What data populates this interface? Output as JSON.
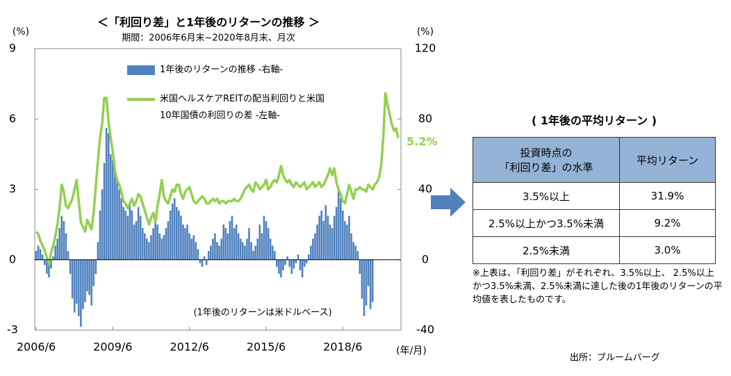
{
  "chart_data": {
    "type": "bar-line",
    "title": "＜「利回り差」と1年後のリターンの推移 ＞",
    "subtitle": "期間：2006年6月末~2020年8月末、月次",
    "y_label": "(%)",
    "y2_label": "(%)",
    "x_label": "(年/月)",
    "annotation": "(1年後のリターンは米ドルベース)",
    "ylim": [
      -3,
      9
    ],
    "yticks": [
      -3,
      0,
      3,
      6,
      9
    ],
    "y2lim": [
      -40,
      120
    ],
    "y2ticks": [
      -40,
      0,
      40,
      80,
      120
    ],
    "grid": false,
    "categories": [
      "2006/6",
      null,
      null,
      null,
      null,
      null,
      null,
      null,
      null,
      null,
      null,
      null,
      null,
      null,
      null,
      null,
      null,
      null,
      null,
      null,
      null,
      null,
      null,
      null,
      null,
      null,
      null,
      null,
      null,
      null,
      null,
      null,
      null,
      null,
      null,
      null,
      "2009/6",
      null,
      null,
      null,
      null,
      null,
      null,
      null,
      null,
      null,
      null,
      null,
      null,
      null,
      null,
      null,
      null,
      null,
      null,
      null,
      null,
      null,
      null,
      null,
      null,
      null,
      null,
      null,
      null,
      null,
      null,
      null,
      null,
      null,
      null,
      null,
      "2012/6",
      null,
      null,
      null,
      null,
      null,
      null,
      null,
      null,
      null,
      null,
      null,
      null,
      null,
      null,
      null,
      null,
      null,
      null,
      null,
      null,
      null,
      null,
      null,
      null,
      null,
      null,
      null,
      null,
      null,
      null,
      null,
      null,
      null,
      null,
      null,
      "2015/6",
      null,
      null,
      null,
      null,
      null,
      null,
      null,
      null,
      null,
      null,
      null,
      null,
      null,
      null,
      null,
      null,
      null,
      null,
      null,
      null,
      null,
      null,
      null,
      null,
      null,
      null,
      null,
      null,
      null,
      null,
      null,
      null,
      null,
      null,
      null,
      "2018/6",
      null,
      null,
      null,
      null,
      null,
      null,
      null,
      null,
      null,
      null,
      null,
      null,
      null,
      null,
      null,
      null,
      null,
      null,
      null,
      null,
      null,
      null,
      null,
      null,
      null,
      null
    ],
    "series": [
      {
        "name": "1年後のリターンの推移 -右軸-",
        "type": "bar",
        "axis": "y2",
        "color": "#4f81bd",
        "values": [
          5,
          8,
          6,
          3,
          -3,
          -8,
          -10,
          -5,
          2,
          8,
          12,
          18,
          25,
          22,
          15,
          5,
          -8,
          -22,
          -30,
          -25,
          -32,
          -38,
          -28,
          -24,
          -18,
          -20,
          -26,
          -15,
          -8,
          10,
          28,
          40,
          55,
          75,
          72,
          60,
          57,
          50,
          45,
          40,
          35,
          30,
          28,
          25,
          32,
          28,
          20,
          22,
          30,
          25,
          18,
          15,
          12,
          10,
          14,
          18,
          22,
          20,
          15,
          12,
          14,
          18,
          22,
          28,
          32,
          35,
          30,
          28,
          25,
          20,
          18,
          20,
          15,
          12,
          14,
          10,
          6,
          -2,
          -4,
          2,
          -3,
          5,
          8,
          12,
          15,
          10,
          8,
          12,
          20,
          18,
          15,
          22,
          25,
          18,
          20,
          15,
          12,
          10,
          8,
          12,
          18,
          10,
          5,
          8,
          12,
          20,
          15,
          25,
          22,
          18,
          12,
          8,
          5,
          -4,
          -8,
          -10,
          -6,
          -3,
          2,
          -4,
          -8,
          -5,
          -2,
          3,
          -6,
          -10,
          -4,
          -2,
          3,
          8,
          12,
          15,
          20,
          25,
          28,
          22,
          31,
          25,
          20,
          18,
          25,
          30,
          39,
          35,
          28,
          22,
          20,
          25,
          15,
          10,
          8,
          5,
          -8,
          -22,
          -32,
          -26,
          -15,
          -28,
          -24,
          null,
          null,
          null,
          null,
          null,
          null,
          null,
          null,
          null,
          null,
          null,
          null
        ]
      },
      {
        "name": "米国ヘルスケアREITの配当利回りと米国\n10年国債の利回りの差 -左軸-",
        "type": "line",
        "axis": "y",
        "color": "#92d050",
        "values": [
          1.2,
          1.1,
          0.8,
          0.6,
          0.4,
          0.1,
          -0.2,
          0.3,
          0.6,
          1.0,
          1.5,
          2.2,
          3.2,
          2.9,
          2.3,
          2.2,
          2.4,
          2.6,
          3.0,
          3.4,
          2.5,
          1.6,
          1.4,
          1.2,
          1.7,
          1.5,
          1.3,
          2.0,
          3.1,
          4.2,
          5.2,
          5.8,
          6.9,
          6.9,
          5.9,
          5.2,
          4.6,
          3.8,
          3.4,
          3.2,
          2.9,
          2.5,
          2.4,
          2.2,
          2.4,
          2.6,
          2.3,
          2.5,
          2.8,
          2.7,
          2.4,
          2.1,
          1.8,
          1.5,
          1.8,
          2.0,
          1.6,
          2.3,
          2.8,
          3.4,
          2.7,
          2.5,
          2.4,
          2.7,
          3.0,
          2.9,
          3.2,
          3.2,
          2.8,
          2.6,
          2.9,
          3.0,
          3.1,
          2.8,
          2.5,
          2.4,
          2.5,
          2.6,
          2.7,
          2.6,
          2.4,
          2.4,
          2.5,
          2.6,
          2.5,
          2.6,
          2.4,
          2.5,
          2.5,
          2.4,
          2.5,
          2.5,
          2.5,
          2.6,
          2.5,
          2.5,
          2.6,
          2.8,
          3.0,
          3.1,
          3.2,
          3.0,
          2.9,
          3.3,
          3.2,
          3.0,
          3.1,
          3.2,
          3.4,
          3.0,
          3.1,
          3.3,
          3.4,
          3.3,
          3.6,
          4.0,
          3.6,
          3.4,
          3.3,
          3.4,
          3.2,
          3.1,
          3.3,
          3.2,
          3.1,
          3.2,
          3.3,
          3.0,
          3.1,
          3.2,
          3.3,
          3.1,
          3.2,
          3.3,
          3.1,
          3.2,
          3.4,
          3.6,
          3.9,
          3.6,
          3.9,
          3.3,
          3.0,
          2.8,
          2.5,
          2.4,
          2.8,
          3.2,
          2.9,
          2.6,
          3.0,
          3.0,
          3.1,
          3.0,
          3.0,
          2.9,
          3.2,
          3.1,
          3.0,
          3.2,
          3.3,
          3.5,
          4.0,
          5.2,
          7.1,
          6.6,
          6.2,
          5.8,
          5.5,
          5.6,
          5.2
        ],
        "value_labels": [
          null,
          null,
          null,
          null,
          null,
          null,
          null,
          null,
          null,
          null,
          null,
          null,
          null,
          null,
          null,
          null,
          null,
          null,
          null,
          null,
          null,
          null,
          null,
          null,
          null,
          null,
          null,
          null,
          null,
          null,
          null,
          null,
          null,
          null,
          null,
          null,
          null,
          null,
          null,
          null,
          null,
          null,
          null,
          null,
          null,
          null,
          null,
          null,
          null,
          null,
          null,
          null,
          null,
          null,
          null,
          null,
          null,
          null,
          null,
          null,
          null,
          null,
          null,
          null,
          null,
          null,
          null,
          null,
          null,
          null,
          null,
          null,
          null,
          null,
          null,
          null,
          null,
          null,
          null,
          null,
          null,
          null,
          null,
          null,
          null,
          null,
          null,
          null,
          null,
          null,
          null,
          null,
          null,
          null,
          null,
          null,
          null,
          null,
          null,
          null,
          null,
          null,
          null,
          null,
          null,
          null,
          null,
          null,
          null,
          null,
          null,
          null,
          null,
          null,
          null,
          null,
          null,
          null,
          null,
          null,
          null,
          null,
          null,
          null,
          null,
          null,
          null,
          null,
          null,
          null,
          null,
          null,
          null,
          null,
          null,
          null,
          null,
          null,
          null,
          null,
          null,
          null,
          null,
          null,
          null,
          null,
          null,
          null,
          null,
          null,
          null,
          null,
          null,
          null,
          null,
          null,
          null,
          null,
          null,
          null,
          null,
          null,
          null,
          null,
          null,
          null,
          null,
          null,
          null,
          null,
          "5.2%"
        ]
      }
    ]
  },
  "table": {
    "title": "( 1年後の平均リターン )",
    "header": [
      "投資時点の\n「利回り差」の水準",
      "平均リターン"
    ],
    "rows": [
      [
        "3.5%以上",
        "31.9%"
      ],
      [
        "2.5%以上かつ3.5%未満",
        "9.2%"
      ],
      [
        "2.5%未満",
        "3.0%"
      ]
    ],
    "note": "※上表は、「利回り差」がそれぞれ、3.5%以上、 2.5%以上かつ3.5%未満、2.5%未満に達した後の1年後のリターンの平均値を表したものです。"
  },
  "source": "出所：ブルームバーグ"
}
